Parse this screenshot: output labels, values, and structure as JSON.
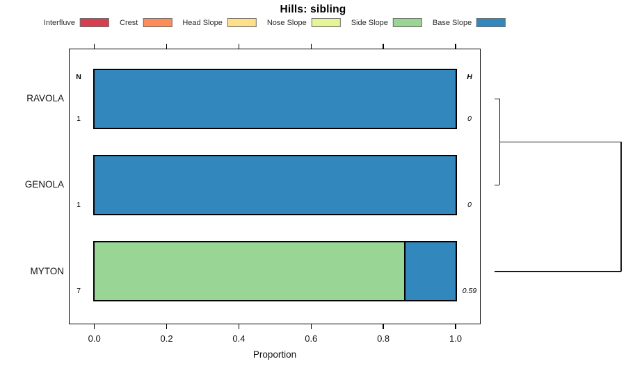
{
  "title": "Hills: sibling",
  "legend": {
    "items": [
      {
        "label": "Interfluve",
        "color": "#D53E4F"
      },
      {
        "label": "Crest",
        "color": "#FC8D59"
      },
      {
        "label": "Head Slope",
        "color": "#FEE08B"
      },
      {
        "label": "Nose Slope",
        "color": "#E6F598"
      },
      {
        "label": "Side Slope",
        "color": "#99D594"
      },
      {
        "label": "Base Slope",
        "color": "#3288BD"
      }
    ]
  },
  "chart_data": {
    "type": "bar",
    "stacked": true,
    "orientation": "horizontal",
    "title": "Hills: sibling",
    "xlabel": "Proportion",
    "xlim": [
      0,
      1
    ],
    "xticks": [
      "0.0",
      "0.2",
      "0.4",
      "0.6",
      "0.8",
      "1.0"
    ],
    "grid": false,
    "legend_position": "top",
    "categories": [
      "RAVOLA",
      "GENOLA",
      "MYTON"
    ],
    "series": [
      {
        "name": "Interfluve",
        "color": "#D53E4F",
        "values": [
          0,
          0,
          0
        ]
      },
      {
        "name": "Crest",
        "color": "#FC8D59",
        "values": [
          0,
          0,
          0
        ]
      },
      {
        "name": "Head Slope",
        "color": "#FEE08B",
        "values": [
          0,
          0,
          0
        ]
      },
      {
        "name": "Nose Slope",
        "color": "#E6F598",
        "values": [
          0,
          0,
          0
        ]
      },
      {
        "name": "Side Slope",
        "color": "#99D594",
        "values": [
          0,
          0,
          0.857
        ]
      },
      {
        "name": "Base Slope",
        "color": "#3288BD",
        "values": [
          1,
          1,
          0.143
        ]
      }
    ],
    "columns": {
      "n_header": "N",
      "h_header": "H",
      "n_values": [
        "1",
        "1",
        "7"
      ],
      "h_values": [
        "0",
        "0",
        "0.59"
      ]
    },
    "dendrogram": {
      "leaf_order": [
        "RAVOLA",
        "GENOLA",
        "MYTON"
      ],
      "merges": [
        {
          "members": [
            "RAVOLA",
            "GENOLA"
          ],
          "height": 0.04
        },
        {
          "members": [
            "RAVOLA+GENOLA",
            "MYTON"
          ],
          "height": 1.0
        }
      ]
    }
  }
}
